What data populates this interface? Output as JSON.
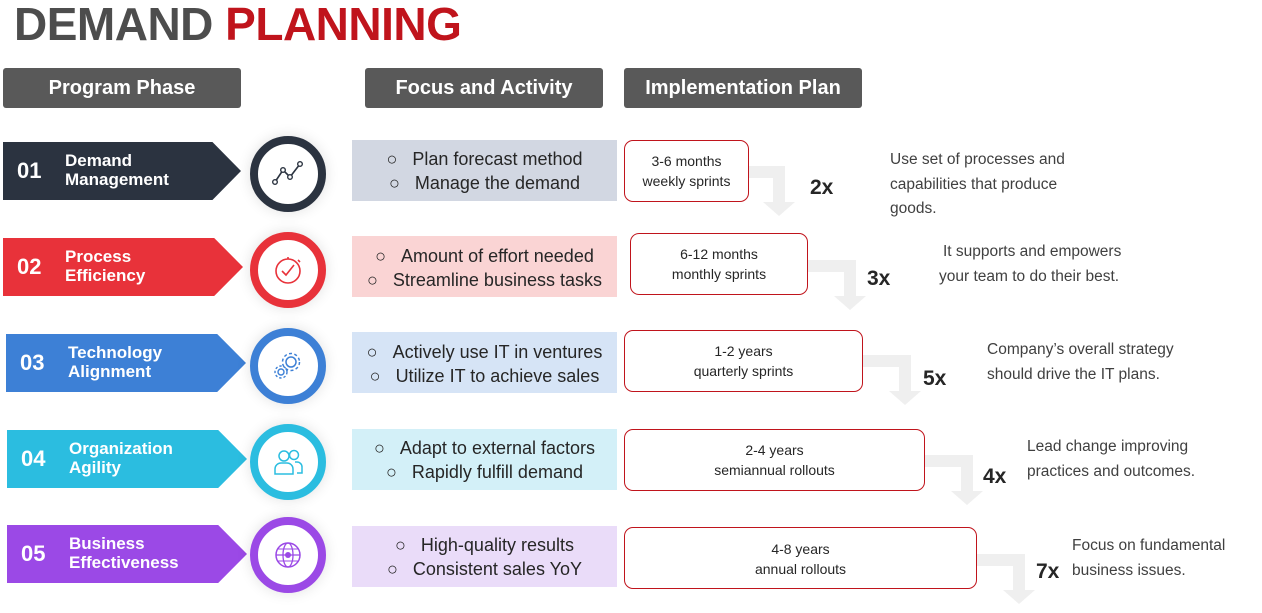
{
  "title": {
    "part1": "DEMAND",
    "part2": "PLANNING"
  },
  "headers": {
    "phase": "Program Phase",
    "focus": "Focus and Activity",
    "plan": "Implementation Plan"
  },
  "bullet": "○",
  "rows": [
    {
      "num": "01",
      "label": [
        "Demand",
        "Management"
      ],
      "color": "#2b3340",
      "icon": "line-chart-icon",
      "focus_bg": "#d2d7e2",
      "focus": [
        "Plan forecast method",
        "Manage the demand"
      ],
      "plan": [
        "3-6 months",
        "weekly sprints"
      ],
      "mult": "2x",
      "desc": [
        "Use set of processes and",
        "capabilities that produce",
        "goods."
      ]
    },
    {
      "num": "02",
      "label": [
        "Process",
        "Efficiency"
      ],
      "color": "#e8323a",
      "icon": "stopwatch-icon",
      "focus_bg": "#fad4d4",
      "focus": [
        "Amount of effort needed",
        "Streamline business tasks"
      ],
      "plan": [
        "6-12 months",
        "monthly sprints"
      ],
      "mult": "3x",
      "desc": [
        "It supports and empowers",
        "your team to do their best."
      ]
    },
    {
      "num": "03",
      "label": [
        "Technology",
        "Alignment"
      ],
      "color": "#3d80d6",
      "icon": "gears-icon",
      "focus_bg": "#d6e4f6",
      "focus": [
        "Actively use IT in ventures",
        "Utilize IT to achieve sales"
      ],
      "plan": [
        "1-2 years",
        "quarterly sprints"
      ],
      "mult": "5x",
      "desc": [
        "Company’s overall strategy",
        "should drive the IT plans."
      ]
    },
    {
      "num": "04",
      "label": [
        "Organization",
        "Agility"
      ],
      "color": "#2bbde0",
      "icon": "users-icon",
      "focus_bg": "#d3f0f8",
      "focus": [
        "Adapt to external factors",
        "Rapidly fulfill demand"
      ],
      "plan": [
        "2-4 years",
        "semiannual rollouts"
      ],
      "mult": "4x",
      "desc": [
        "Lead change improving",
        "practices and outcomes."
      ]
    },
    {
      "num": "05",
      "label": [
        "Business",
        "Effectiveness"
      ],
      "color": "#9b49e6",
      "icon": "globe-icon",
      "focus_bg": "#eadcf9",
      "focus": [
        "High-quality results",
        "Consistent sales YoY"
      ],
      "plan": [
        "4-8 years",
        "annual rollouts"
      ],
      "mult": "7x",
      "desc": [
        "Focus on fundamental",
        "business issues."
      ]
    }
  ]
}
